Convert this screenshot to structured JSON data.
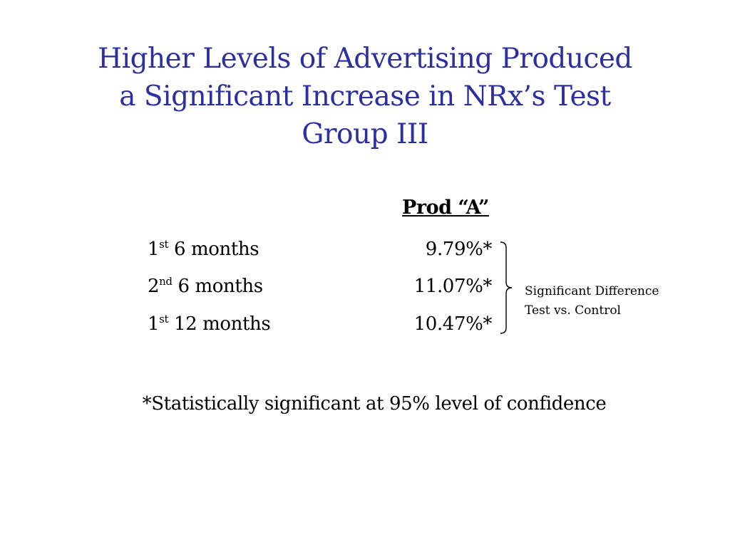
{
  "slide": {
    "title_lines": [
      "Higher Levels of Advertising Produced",
      "a Significant Increase in NRx’s Test",
      "Group III"
    ],
    "title_color": "#2b2fa0"
  },
  "table": {
    "column_header": "Prod “A”",
    "rows": [
      {
        "ordinal_number": "1",
        "ordinal_suffix": "st",
        "period": "6 months",
        "value": "9.79%*"
      },
      {
        "ordinal_number": "2",
        "ordinal_suffix": "nd",
        "period": "6 months",
        "value": "11.07%*"
      },
      {
        "ordinal_number": "1",
        "ordinal_suffix": "st",
        "period": "12 months",
        "value": "10.47%*"
      }
    ]
  },
  "annotation": {
    "lines": [
      "Significant Difference",
      "Test vs. Control"
    ]
  },
  "footnote": "*Statistically significant at 95% level of confidence"
}
